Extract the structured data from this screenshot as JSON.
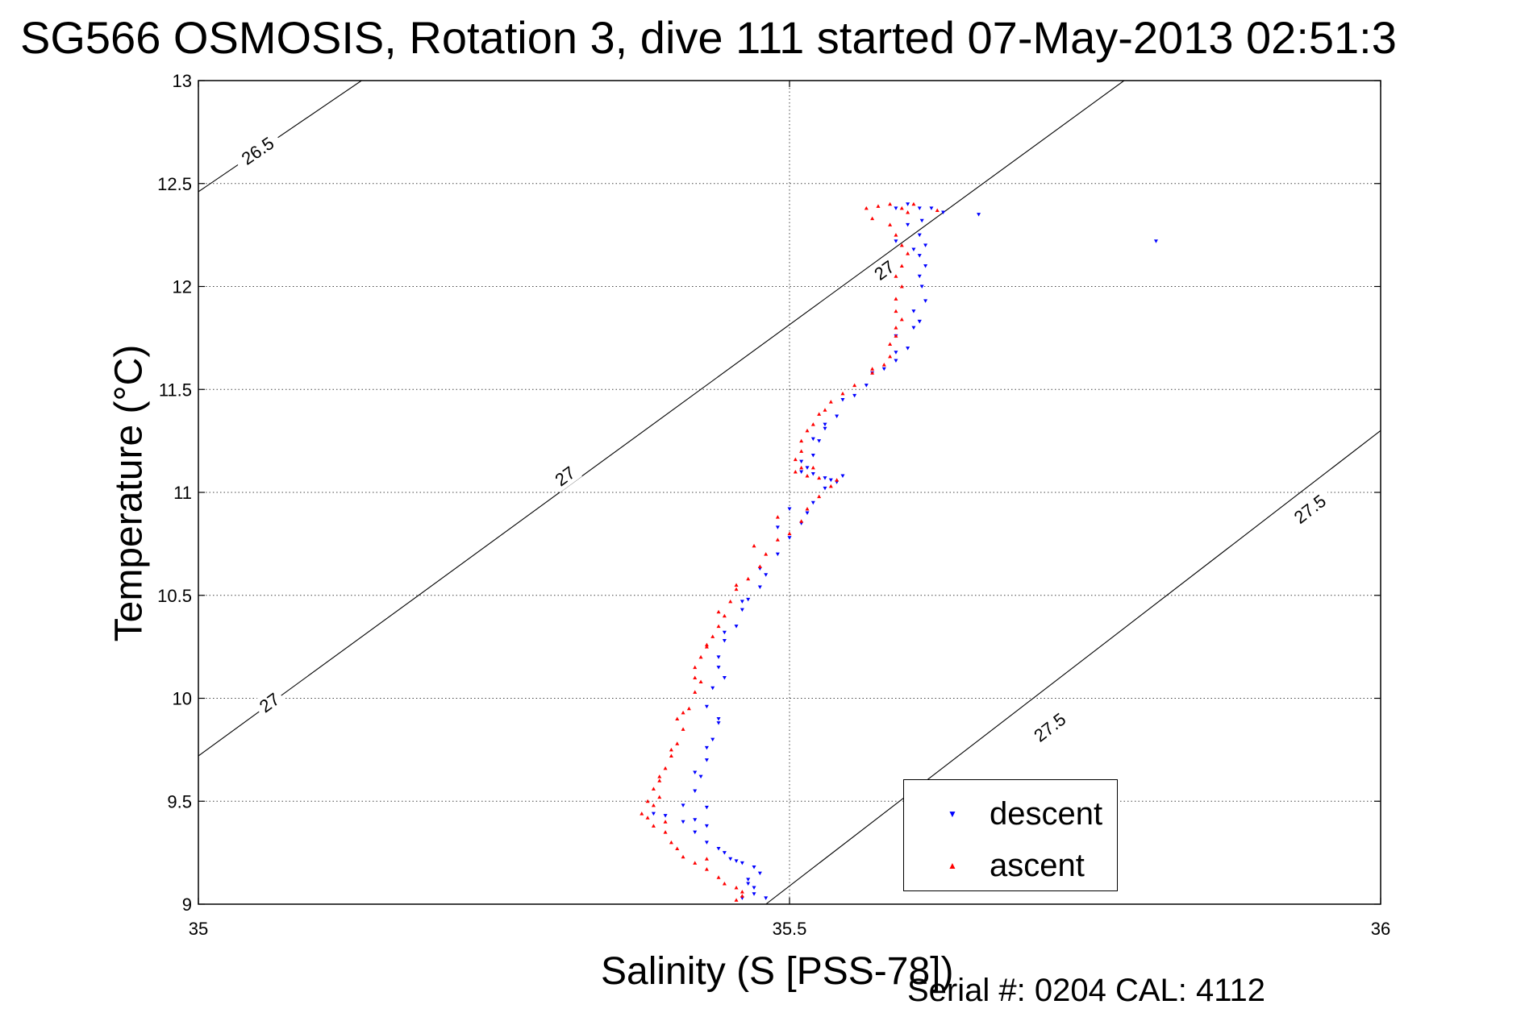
{
  "chart_data": {
    "type": "scatter",
    "title": "SG566 OSMOSIS, Rotation 3, dive 111 started 07-May-2013 02:51:3",
    "xlabel": "Salinity (S [PSS-78])",
    "ylabel": "Temperature (°C)",
    "xlim": [
      35,
      36
    ],
    "ylim": [
      9,
      13
    ],
    "xticks": [
      "35",
      "35.5",
      "36"
    ],
    "yticks": [
      "9",
      "9.5",
      "10",
      "10.5",
      "11",
      "11.5",
      "12",
      "12.5",
      "13"
    ],
    "grid": true,
    "legend_position": "bottom-right",
    "series": [
      {
        "name": "descent",
        "marker": "triangle-down",
        "color": "#0000ff",
        "points": [
          [
            35.46,
            9.03
          ],
          [
            35.47,
            9.05
          ],
          [
            35.48,
            9.03
          ],
          [
            35.465,
            9.1
          ],
          [
            35.475,
            9.15
          ],
          [
            35.47,
            9.18
          ],
          [
            35.46,
            9.2
          ],
          [
            35.45,
            9.22
          ],
          [
            35.44,
            9.27
          ],
          [
            35.43,
            9.3
          ],
          [
            35.42,
            9.35
          ],
          [
            35.41,
            9.4
          ],
          [
            35.395,
            9.43
          ],
          [
            35.385,
            9.44
          ],
          [
            35.42,
            9.41
          ],
          [
            35.43,
            9.47
          ],
          [
            35.42,
            9.55
          ],
          [
            35.425,
            9.62
          ],
          [
            35.43,
            9.7
          ],
          [
            35.435,
            9.8
          ],
          [
            35.44,
            9.9
          ],
          [
            35.43,
            9.96
          ],
          [
            35.435,
            10.05
          ],
          [
            35.445,
            10.1
          ],
          [
            35.44,
            10.2
          ],
          [
            35.445,
            10.28
          ],
          [
            35.455,
            10.35
          ],
          [
            35.46,
            10.43
          ],
          [
            35.465,
            10.48
          ],
          [
            35.475,
            10.54
          ],
          [
            35.48,
            10.6
          ],
          [
            35.49,
            10.7
          ],
          [
            35.5,
            10.78
          ],
          [
            35.51,
            10.85
          ],
          [
            35.515,
            10.9
          ],
          [
            35.52,
            10.95
          ],
          [
            35.53,
            11.02
          ],
          [
            35.535,
            11.06
          ],
          [
            35.545,
            11.08
          ],
          [
            35.53,
            11.07
          ],
          [
            35.52,
            11.09
          ],
          [
            35.51,
            11.1
          ],
          [
            35.51,
            11.15
          ],
          [
            35.52,
            11.18
          ],
          [
            35.525,
            11.25
          ],
          [
            35.53,
            11.31
          ],
          [
            35.54,
            11.37
          ],
          [
            35.555,
            11.47
          ],
          [
            35.565,
            11.52
          ],
          [
            35.58,
            11.6
          ],
          [
            35.59,
            11.64
          ],
          [
            35.6,
            11.7
          ],
          [
            35.59,
            11.76
          ],
          [
            35.605,
            11.8
          ],
          [
            35.61,
            11.83
          ],
          [
            35.605,
            11.88
          ],
          [
            35.615,
            11.93
          ],
          [
            35.612,
            12.0
          ],
          [
            35.61,
            12.05
          ],
          [
            35.615,
            12.1
          ],
          [
            35.61,
            12.15
          ],
          [
            35.615,
            12.2
          ],
          [
            35.61,
            12.25
          ],
          [
            35.612,
            12.32
          ],
          [
            35.61,
            12.38
          ],
          [
            35.6,
            12.4
          ],
          [
            35.62,
            12.38
          ],
          [
            35.63,
            12.36
          ],
          [
            35.59,
            12.38
          ],
          [
            35.66,
            12.35
          ],
          [
            35.6,
            12.3
          ],
          [
            35.59,
            12.22
          ],
          [
            35.605,
            12.18
          ],
          [
            35.81,
            12.22
          ],
          [
            35.61,
            11.83
          ],
          [
            35.59,
            11.68
          ],
          [
            35.57,
            11.58
          ],
          [
            35.545,
            11.45
          ],
          [
            35.53,
            11.33
          ],
          [
            35.52,
            11.26
          ],
          [
            35.515,
            11.12
          ],
          [
            35.54,
            11.05
          ],
          [
            35.5,
            10.92
          ],
          [
            35.49,
            10.83
          ],
          [
            35.475,
            10.63
          ],
          [
            35.46,
            10.47
          ],
          [
            35.445,
            10.32
          ],
          [
            35.44,
            10.15
          ],
          [
            35.44,
            9.88
          ],
          [
            35.43,
            9.76
          ],
          [
            35.42,
            9.64
          ],
          [
            35.41,
            9.48
          ],
          [
            35.43,
            9.38
          ],
          [
            35.445,
            9.25
          ],
          [
            35.455,
            9.21
          ],
          [
            35.465,
            9.12
          ],
          [
            35.47,
            9.08
          ]
        ]
      },
      {
        "name": "ascent",
        "marker": "triangle-up",
        "color": "#ff0000",
        "points": [
          [
            35.455,
            9.02
          ],
          [
            35.46,
            9.06
          ],
          [
            35.455,
            9.08
          ],
          [
            35.44,
            9.13
          ],
          [
            35.43,
            9.17
          ],
          [
            35.42,
            9.2
          ],
          [
            35.41,
            9.23
          ],
          [
            35.405,
            9.27
          ],
          [
            35.4,
            9.3
          ],
          [
            35.395,
            9.35
          ],
          [
            35.385,
            9.38
          ],
          [
            35.38,
            9.42
          ],
          [
            35.375,
            9.44
          ],
          [
            35.385,
            9.48
          ],
          [
            35.39,
            9.52
          ],
          [
            35.385,
            9.56
          ],
          [
            35.39,
            9.6
          ],
          [
            35.395,
            9.66
          ],
          [
            35.4,
            9.72
          ],
          [
            35.405,
            9.78
          ],
          [
            35.41,
            9.85
          ],
          [
            35.405,
            9.9
          ],
          [
            35.415,
            9.95
          ],
          [
            35.42,
            10.03
          ],
          [
            35.425,
            10.08
          ],
          [
            35.42,
            10.15
          ],
          [
            35.425,
            10.2
          ],
          [
            35.43,
            10.25
          ],
          [
            35.435,
            10.3
          ],
          [
            35.44,
            10.35
          ],
          [
            35.445,
            10.4
          ],
          [
            35.45,
            10.47
          ],
          [
            35.455,
            10.53
          ],
          [
            35.465,
            10.58
          ],
          [
            35.475,
            10.64
          ],
          [
            35.48,
            10.7
          ],
          [
            35.49,
            10.77
          ],
          [
            35.5,
            10.8
          ],
          [
            35.51,
            10.86
          ],
          [
            35.515,
            10.92
          ],
          [
            35.525,
            10.98
          ],
          [
            35.535,
            11.03
          ],
          [
            35.54,
            11.06
          ],
          [
            35.525,
            11.07
          ],
          [
            35.515,
            11.08
          ],
          [
            35.505,
            11.1
          ],
          [
            35.51,
            11.12
          ],
          [
            35.505,
            11.16
          ],
          [
            35.51,
            11.2
          ],
          [
            35.51,
            11.25
          ],
          [
            35.515,
            11.3
          ],
          [
            35.52,
            11.33
          ],
          [
            35.525,
            11.38
          ],
          [
            35.535,
            11.44
          ],
          [
            35.545,
            11.48
          ],
          [
            35.555,
            11.52
          ],
          [
            35.57,
            11.58
          ],
          [
            35.58,
            11.62
          ],
          [
            35.585,
            11.66
          ],
          [
            35.585,
            11.72
          ],
          [
            35.59,
            11.76
          ],
          [
            35.59,
            11.8
          ],
          [
            35.595,
            11.84
          ],
          [
            35.59,
            11.88
          ],
          [
            35.59,
            11.94
          ],
          [
            35.595,
            12.0
          ],
          [
            35.59,
            12.05
          ],
          [
            35.595,
            12.1
          ],
          [
            35.6,
            12.16
          ],
          [
            35.595,
            12.2
          ],
          [
            35.59,
            12.25
          ],
          [
            35.585,
            12.3
          ],
          [
            35.57,
            12.33
          ],
          [
            35.565,
            12.38
          ],
          [
            35.575,
            12.39
          ],
          [
            35.585,
            12.4
          ],
          [
            35.595,
            12.38
          ],
          [
            35.6,
            12.36
          ],
          [
            35.605,
            12.4
          ],
          [
            35.625,
            12.37
          ],
          [
            35.57,
            11.6
          ],
          [
            35.53,
            11.4
          ],
          [
            35.52,
            11.12
          ],
          [
            35.49,
            10.88
          ],
          [
            35.47,
            10.74
          ],
          [
            35.455,
            10.55
          ],
          [
            35.44,
            10.42
          ],
          [
            35.43,
            10.26
          ],
          [
            35.42,
            10.1
          ],
          [
            35.41,
            9.93
          ],
          [
            35.4,
            9.75
          ],
          [
            35.39,
            9.62
          ],
          [
            35.38,
            9.5
          ],
          [
            35.395,
            9.4
          ],
          [
            35.43,
            9.22
          ],
          [
            35.445,
            9.1
          ],
          [
            35.46,
            9.04
          ]
        ]
      }
    ],
    "isopycnals": [
      {
        "label": "26.5",
        "points": [
          [
            35,
            12.46
          ],
          [
            35.138,
            13.0
          ]
        ],
        "label_at": [
          [
            35.05,
            12.66
          ]
        ]
      },
      {
        "label": "27",
        "points": [
          [
            35,
            9.72
          ],
          [
            35.783,
            13.0
          ]
        ],
        "label_at": [
          [
            35.06,
            9.98
          ],
          [
            35.31,
            11.08
          ],
          [
            35.58,
            12.08
          ]
        ]
      },
      {
        "label": "27.5",
        "points": [
          [
            35.48,
            9.0
          ],
          [
            36.0,
            11.3
          ]
        ],
        "label_at": [
          [
            35.72,
            9.86
          ],
          [
            35.94,
            10.92
          ]
        ]
      }
    ]
  },
  "footer": "Serial #: 0204  CAL: 4112"
}
